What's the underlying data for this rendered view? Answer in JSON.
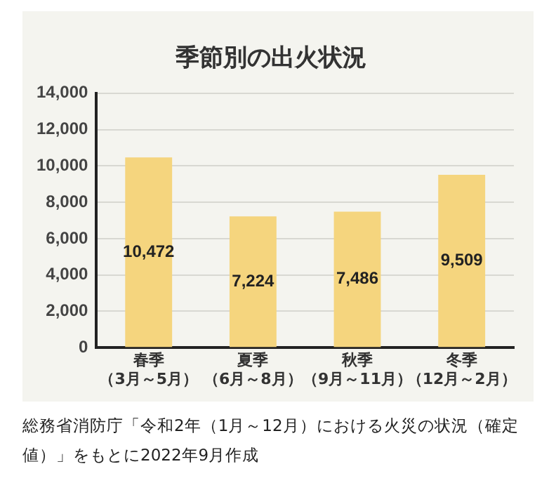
{
  "chart_data": {
    "type": "bar",
    "title": "季節別の出火状況",
    "categories": [
      "春季（3月～5月）",
      "夏季（6月～8月）",
      "秋季（9月～11月）",
      "冬季（12月～2月）"
    ],
    "values": [
      10472,
      7224,
      7486,
      9509
    ],
    "value_labels": [
      "10,472",
      "7,224",
      "7,486",
      "9,509"
    ],
    "color": "#f5d57e",
    "ylim": [
      0,
      14000
    ],
    "yticks": [
      0,
      {
        "value": 2000,
        "label": "2,000"
      },
      {
        "value": 4000,
        "label": "4,000"
      },
      {
        "value": 6000,
        "label": "6,000"
      },
      {
        "value": 8000,
        "label": "8,000"
      },
      {
        "value": 10000,
        "label": "10,000"
      },
      {
        "value": 12000,
        "label": "12,000"
      },
      {
        "value": 14000,
        "label": "14,000"
      }
    ],
    "grid": "y",
    "legend": false,
    "annotations": [
      "総務省消防庁「令和2年（1月～12月）における火災の状況（確定値）」をもとに2022年9月作成"
    ]
  }
}
